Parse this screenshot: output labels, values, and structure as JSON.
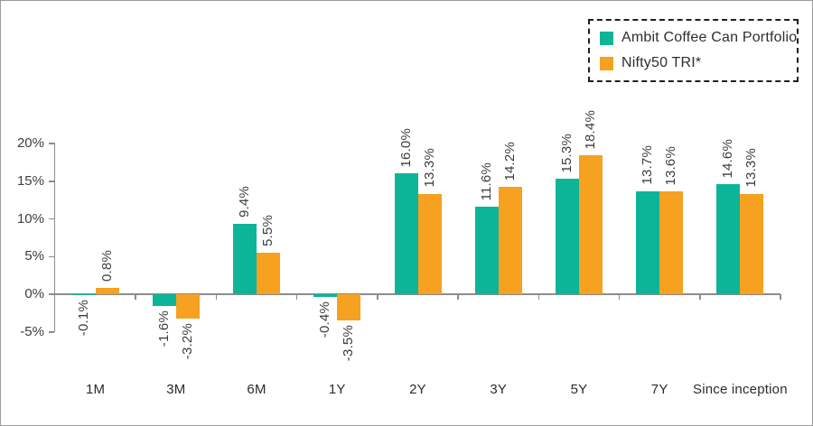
{
  "frame": {
    "background": "#ffffff",
    "border_color": "#9b9b9b"
  },
  "legend": {
    "position": "top-right",
    "border_style": "dashed",
    "items": [
      {
        "label": "Ambit Coffee Can Portfolio",
        "color": "#0db598"
      },
      {
        "label": "Nifty50 TRI*",
        "color": "#f6a120"
      }
    ]
  },
  "chart_data": {
    "type": "bar",
    "title": "",
    "xlabel": "",
    "ylabel": "",
    "categories": [
      "1M",
      "3M",
      "6M",
      "1Y",
      "2Y",
      "3Y",
      "5Y",
      "7Y",
      "Since inception"
    ],
    "series": [
      {
        "name": "Ambit Coffee Can Portfolio",
        "color": "#0db598",
        "values": [
          -0.1,
          -1.6,
          9.4,
          -0.4,
          16.0,
          11.6,
          15.3,
          13.7,
          14.6
        ]
      },
      {
        "name": "Nifty50 TRI*",
        "color": "#f6a120",
        "values": [
          0.8,
          -3.2,
          5.5,
          -3.5,
          13.3,
          14.2,
          18.4,
          13.6,
          13.3
        ]
      }
    ],
    "value_labels": {
      "shown": true,
      "format": "one_decimal_percent",
      "rotation": "vertical-bottom-to-top",
      "color": "#3d3d3d"
    },
    "y_axis": {
      "min": -5,
      "max": 20,
      "ticks": [
        20,
        15,
        10,
        5,
        0,
        -5
      ],
      "tick_suffix": "%",
      "axis_color": "#8c8c8c"
    },
    "grid": false,
    "legend_position": "top-right"
  }
}
